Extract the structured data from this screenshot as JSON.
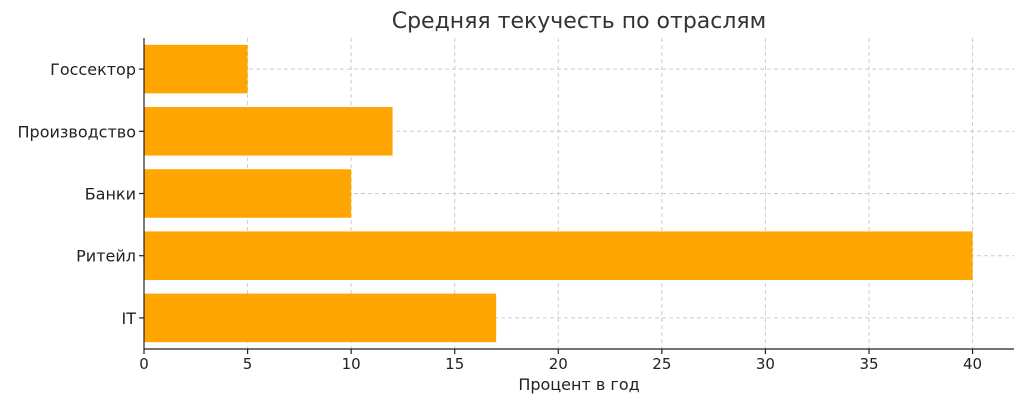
{
  "chart_data": {
    "type": "bar",
    "orientation": "horizontal",
    "title": "Средняя текучесть по отраслям",
    "xlabel": "Процент в год",
    "ylabel": "",
    "categories": [
      "Госсектор",
      "Производство",
      "Банки",
      "Ритейл",
      "IT"
    ],
    "values": [
      5,
      12,
      10,
      40,
      17
    ],
    "xlim": [
      0,
      42
    ],
    "xticks": [
      0,
      5,
      10,
      15,
      20,
      25,
      30,
      35,
      40
    ],
    "grid": true,
    "bar_color": "#FFA500"
  }
}
